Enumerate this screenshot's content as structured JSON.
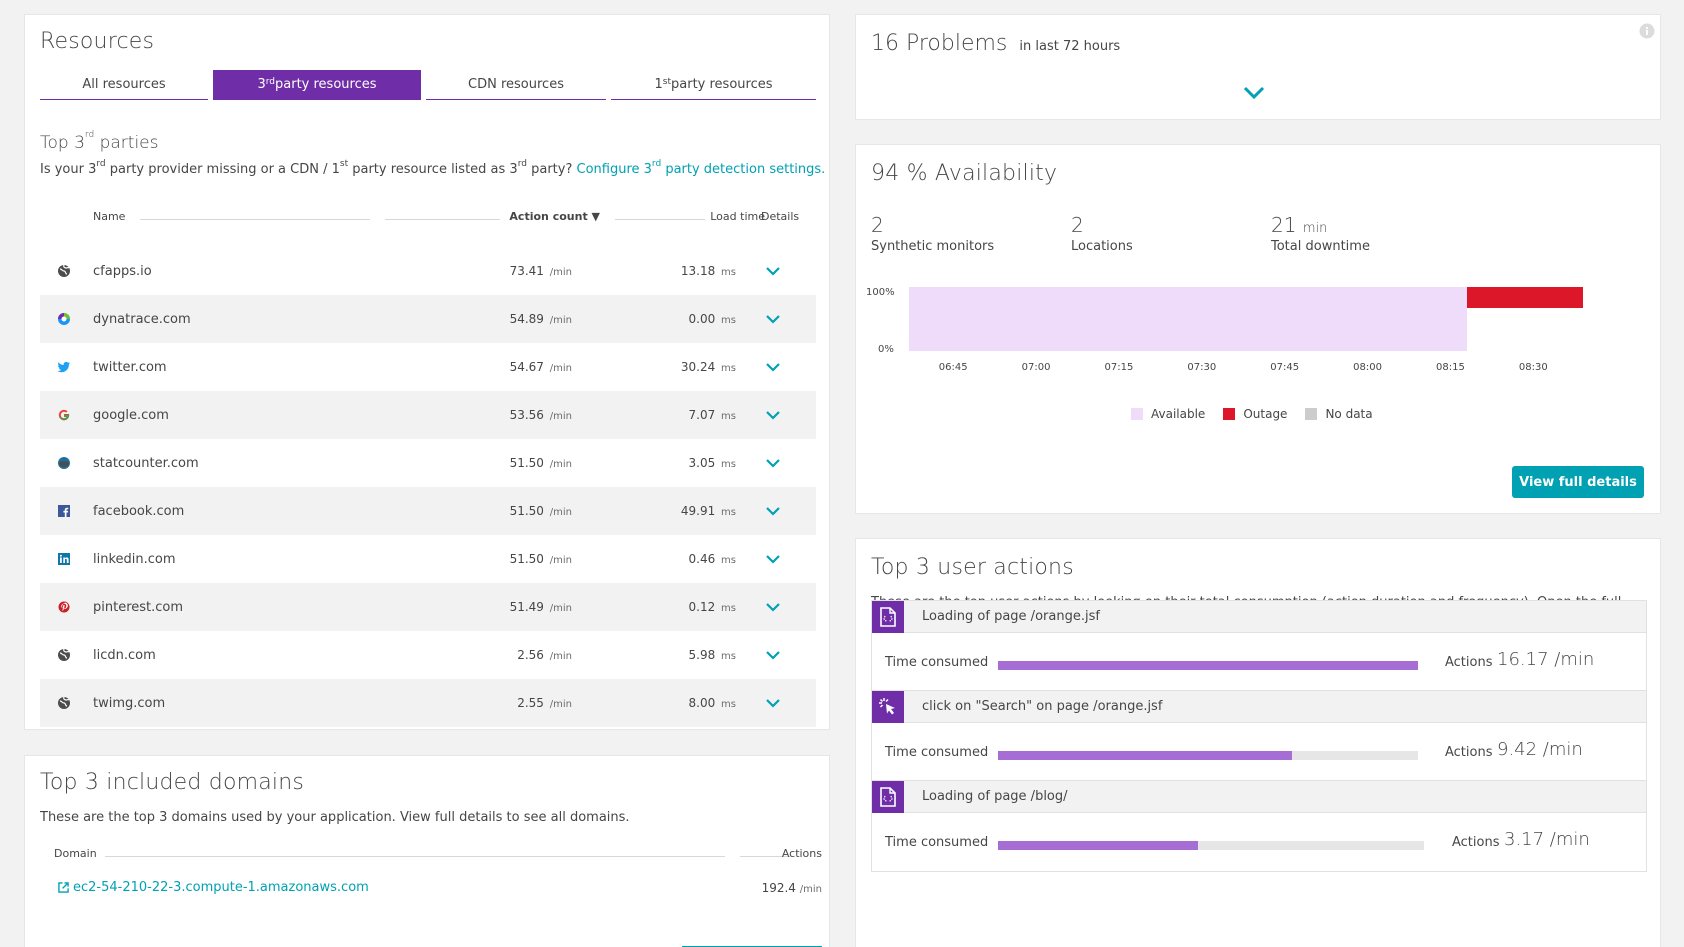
{
  "resources": {
    "title": "Resources",
    "tabs": [
      {
        "label": "All resources"
      },
      {
        "label": "3",
        "sup": "rd",
        "rest": " party resources",
        "active": true
      },
      {
        "label": "CDN resources"
      },
      {
        "label": "1",
        "sup": "st",
        "rest": " party resources"
      }
    ],
    "subtitle_pre": "Top 3",
    "subtitle_sup": "rd",
    "subtitle_post": " parties",
    "desc_1": "Is your 3",
    "desc_sup1": "rd",
    "desc_2": " party provider missing or a CDN / 1",
    "desc_sup2": "st",
    "desc_3": " party resource listed as 3",
    "desc_sup3": "rd",
    "desc_4": " party? ",
    "link_1": "Configure 3",
    "link_sup": "rd",
    "link_2": " party detection settings.",
    "columns": {
      "name": "Name",
      "action_count": "Action count ▼",
      "load_time": "Load time",
      "details": "Details"
    },
    "rows": [
      {
        "name": "cfapps.io",
        "icon": "globe-icon",
        "action": "73.41",
        "action_unit": "/min",
        "load": "13.18",
        "load_unit": "ms"
      },
      {
        "name": "dynatrace.com",
        "icon": "dynatrace-icon",
        "action": "54.89",
        "action_unit": "/min",
        "load": "0.00",
        "load_unit": "ms"
      },
      {
        "name": "twitter.com",
        "icon": "twitter-icon",
        "action": "54.67",
        "action_unit": "/min",
        "load": "30.24",
        "load_unit": "ms"
      },
      {
        "name": "google.com",
        "icon": "google-icon",
        "action": "53.56",
        "action_unit": "/min",
        "load": "7.07",
        "load_unit": "ms"
      },
      {
        "name": "statcounter.com",
        "icon": "statcounter-icon",
        "action": "51.50",
        "action_unit": "/min",
        "load": "3.05",
        "load_unit": "ms"
      },
      {
        "name": "facebook.com",
        "icon": "facebook-icon",
        "action": "51.50",
        "action_unit": "/min",
        "load": "49.91",
        "load_unit": "ms"
      },
      {
        "name": "linkedin.com",
        "icon": "linkedin-icon",
        "action": "51.50",
        "action_unit": "/min",
        "load": "0.46",
        "load_unit": "ms"
      },
      {
        "name": "pinterest.com",
        "icon": "pinterest-icon",
        "action": "51.49",
        "action_unit": "/min",
        "load": "0.12",
        "load_unit": "ms"
      },
      {
        "name": "licdn.com",
        "icon": "globe-icon",
        "action": "2.56",
        "action_unit": "/min",
        "load": "5.98",
        "load_unit": "ms"
      },
      {
        "name": "twimg.com",
        "icon": "globe-icon",
        "action": "2.55",
        "action_unit": "/min",
        "load": "8.00",
        "load_unit": "ms"
      }
    ]
  },
  "domains": {
    "title": "Top 3 included domains",
    "desc": "These are the top 3 domains used by your application. View full details to see all domains.",
    "col_domain": "Domain",
    "col_actions": "Actions",
    "row_domain": "ec2-54-210-22-3.compute-1.amazonaws.com",
    "row_value": "192.4",
    "row_unit": "/min"
  },
  "problems": {
    "count_label": "16 Problems",
    "range": "in last 72 hours"
  },
  "availability": {
    "title": "94 % Availability",
    "stats": [
      {
        "value": "2",
        "unit": "",
        "label": "Synthetic monitors"
      },
      {
        "value": "2",
        "unit": "",
        "label": "Locations"
      },
      {
        "value": "21",
        "unit": "min",
        "label": "Total downtime"
      }
    ],
    "y_top": "100%",
    "y_bottom": "0%",
    "x_ticks": [
      "06:45",
      "07:00",
      "07:15",
      "07:30",
      "07:45",
      "08:00",
      "08:15",
      "08:30"
    ],
    "legend": [
      {
        "label": "Available",
        "color": "#efdcfb"
      },
      {
        "label": "Outage",
        "color": "#dc172a"
      },
      {
        "label": "No data",
        "color": "#cccccc"
      }
    ],
    "button": "View full details"
  },
  "user_actions": {
    "title": "Top 3 user actions",
    "desc": "These are the top user actions by looking on their total consumption (action duration and frequency). Open the full details view for looking at other actions and more metrics.",
    "time_label": "Time consumed",
    "actions_label": "Actions",
    "items": [
      {
        "name": "Loading of page /orange.jsf",
        "icon": "page-load-icon",
        "value": "16.17 /min",
        "fill": 1.0
      },
      {
        "name": "click on \"Search\" on page /orange.jsf",
        "icon": "click-icon",
        "value": "9.42 /min",
        "fill": 0.7
      },
      {
        "name": "Loading of page /blog/",
        "icon": "page-load-icon",
        "value": "3.17 /min",
        "fill": 0.47
      }
    ]
  },
  "chart_data": {
    "type": "area",
    "title": "94 % Availability",
    "x": [
      "06:45",
      "07:00",
      "07:15",
      "07:30",
      "07:45",
      "08:00",
      "08:15",
      "08:30"
    ],
    "ylim": [
      0,
      100
    ],
    "series": [
      {
        "name": "Available",
        "segments": [
          {
            "from": "06:37",
            "to": "08:18",
            "value": 100
          }
        ]
      },
      {
        "name": "Outage",
        "segments": [
          {
            "from": "08:18",
            "to": "08:39",
            "value": 100
          }
        ]
      }
    ],
    "legend": "bottom"
  }
}
